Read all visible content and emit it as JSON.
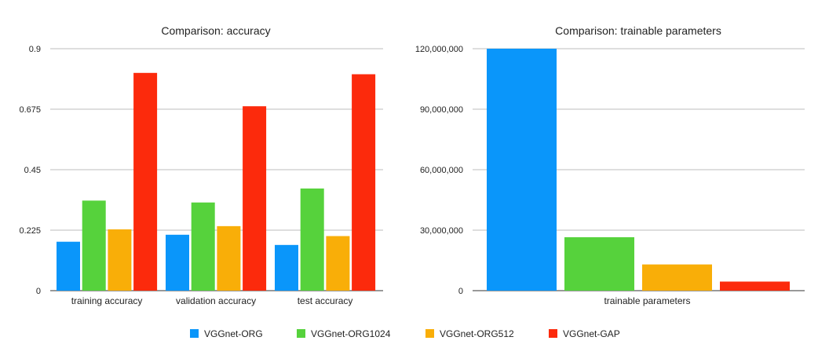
{
  "colors": {
    "VGGnet-ORG": "#0a96fa",
    "VGGnet-ORG1024": "#56d23c",
    "VGGnet-ORG512": "#f9ae08",
    "VGGnet-GAP": "#fc2a0c"
  },
  "chart_data": [
    {
      "type": "bar",
      "title": "Comparison: accuracy",
      "xlabel": "",
      "ylabel": "",
      "ylim": [
        0,
        0.9
      ],
      "yticks": [
        "0",
        "0.225",
        "0.45",
        "0.675",
        "0.9"
      ],
      "grid": true,
      "categories": [
        "training accuracy",
        "validation accuracy",
        "test accuracy"
      ],
      "series": [
        {
          "name": "VGGnet-ORG",
          "values": [
            0.182,
            0.208,
            0.17
          ]
        },
        {
          "name": "VGGnet-ORG1024",
          "values": [
            0.335,
            0.328,
            0.38
          ]
        },
        {
          "name": "VGGnet-ORG512",
          "values": [
            0.228,
            0.24,
            0.203
          ]
        },
        {
          "name": "VGGnet-GAP",
          "values": [
            0.81,
            0.686,
            0.805
          ]
        }
      ]
    },
    {
      "type": "bar",
      "title": "Comparison: trainable parameters",
      "xlabel": "",
      "ylabel": "",
      "ylim": [
        0,
        120000000
      ],
      "yticks": [
        "0",
        "30,000,000",
        "60,000,000",
        "90,000,000",
        "120,000,000"
      ],
      "grid": true,
      "categories": [
        "trainable parameters"
      ],
      "series": [
        {
          "name": "VGGnet-ORG",
          "values": [
            120000000
          ]
        },
        {
          "name": "VGGnet-ORG1024",
          "values": [
            26500000
          ]
        },
        {
          "name": "VGGnet-ORG512",
          "values": [
            13000000
          ]
        },
        {
          "name": "VGGnet-GAP",
          "values": [
            4500000
          ]
        }
      ]
    }
  ],
  "legend": {
    "position": "bottom",
    "items": [
      "VGGnet-ORG",
      "VGGnet-ORG1024",
      "VGGnet-ORG512",
      "VGGnet-GAP"
    ]
  }
}
